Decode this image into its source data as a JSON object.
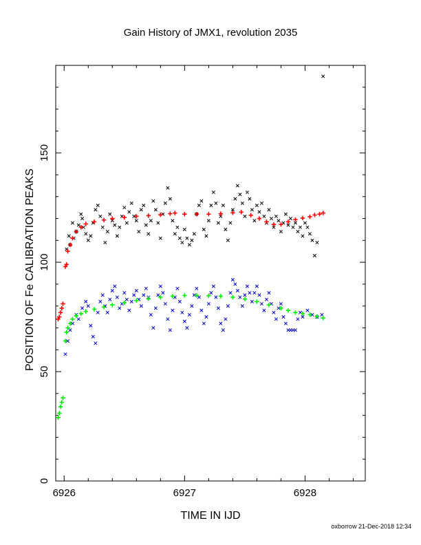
{
  "chart_data": {
    "type": "scatter",
    "title": "Gain History of JMX1, revolution 2035",
    "xlabel": "TIME IN IJD",
    "ylabel": "POSITION OF Fe CALIBRATION PEAKS",
    "xlim": [
      6925.93,
      6928.5
    ],
    "ylim": [
      0,
      190
    ],
    "x_ticks": [
      6926,
      6927,
      6928
    ],
    "y_ticks": [
      0,
      50,
      100,
      150
    ],
    "grid": false,
    "series": [
      {
        "marker": "x",
        "color": "#000000",
        "points": [
          [
            6926.02,
            106
          ],
          [
            6926.04,
            112
          ],
          [
            6926.05,
            108
          ],
          [
            6926.07,
            118
          ],
          [
            6926.08,
            111
          ],
          [
            6926.1,
            114
          ],
          [
            6926.12,
            117
          ],
          [
            6926.14,
            122
          ],
          [
            6926.15,
            120
          ],
          [
            6926.16,
            116
          ],
          [
            6926.18,
            113
          ],
          [
            6926.2,
            110
          ],
          [
            6926.22,
            112
          ],
          [
            6926.24,
            118
          ],
          [
            6926.26,
            124
          ],
          [
            6926.28,
            126
          ],
          [
            6926.3,
            121
          ],
          [
            6926.32,
            116
          ],
          [
            6926.34,
            109
          ],
          [
            6926.36,
            114
          ],
          [
            6926.38,
            122
          ],
          [
            6926.4,
            119
          ],
          [
            6926.42,
            117
          ],
          [
            6926.44,
            112
          ],
          [
            6926.46,
            116
          ],
          [
            6926.48,
            121
          ],
          [
            6926.5,
            125
          ],
          [
            6926.52,
            118
          ],
          [
            6926.54,
            123
          ],
          [
            6926.56,
            127
          ],
          [
            6926.58,
            121
          ],
          [
            6926.6,
            119
          ],
          [
            6926.62,
            114
          ],
          [
            6926.64,
            124
          ],
          [
            6926.66,
            126
          ],
          [
            6926.68,
            117
          ],
          [
            6926.7,
            113
          ],
          [
            6926.72,
            119
          ],
          [
            6926.74,
            128
          ],
          [
            6926.76,
            124
          ],
          [
            6926.78,
            118
          ],
          [
            6926.8,
            111
          ],
          [
            6926.82,
            122
          ],
          [
            6926.84,
            127
          ],
          [
            6926.86,
            134
          ],
          [
            6926.88,
            129
          ],
          [
            6926.9,
            119
          ],
          [
            6926.92,
            113
          ],
          [
            6926.94,
            116
          ],
          [
            6926.96,
            111
          ],
          [
            6926.98,
            109
          ],
          [
            6927.0,
            115
          ],
          [
            6927.02,
            111
          ],
          [
            6927.04,
            108
          ],
          [
            6927.06,
            110
          ],
          [
            6927.08,
            113
          ],
          [
            6927.1,
            122
          ],
          [
            6927.12,
            126
          ],
          [
            6927.14,
            128
          ],
          [
            6927.16,
            115
          ],
          [
            6927.18,
            112
          ],
          [
            6927.2,
            119
          ],
          [
            6927.22,
            126
          ],
          [
            6927.24,
            132
          ],
          [
            6927.26,
            127
          ],
          [
            6927.28,
            118
          ],
          [
            6927.3,
            121
          ],
          [
            6927.32,
            126
          ],
          [
            6927.34,
            115
          ],
          [
            6927.36,
            110
          ],
          [
            6927.38,
            118
          ],
          [
            6927.4,
            124
          ],
          [
            6927.42,
            129
          ],
          [
            6927.44,
            135
          ],
          [
            6927.46,
            131
          ],
          [
            6927.48,
            127
          ],
          [
            6927.5,
            121
          ],
          [
            6927.52,
            132
          ],
          [
            6927.54,
            129
          ],
          [
            6927.56,
            124
          ],
          [
            6927.58,
            119
          ],
          [
            6927.6,
            126
          ],
          [
            6927.62,
            123
          ],
          [
            6927.64,
            127
          ],
          [
            6927.66,
            121
          ],
          [
            6927.68,
            118
          ],
          [
            6927.7,
            124
          ],
          [
            6927.72,
            120
          ],
          [
            6927.74,
            116
          ],
          [
            6927.76,
            121
          ],
          [
            6927.78,
            119
          ],
          [
            6927.8,
            114
          ],
          [
            6927.82,
            118
          ],
          [
            6927.84,
            122
          ],
          [
            6927.86,
            117
          ],
          [
            6927.88,
            120
          ],
          [
            6927.9,
            116
          ],
          [
            6927.92,
            118
          ],
          [
            6927.94,
            114
          ],
          [
            6927.96,
            116
          ],
          [
            6927.98,
            112
          ],
          [
            6928.0,
            118
          ],
          [
            6928.02,
            116
          ],
          [
            6928.04,
            113
          ],
          [
            6928.06,
            110
          ],
          [
            6928.08,
            103
          ],
          [
            6928.1,
            109
          ],
          [
            6928.15,
            185
          ]
        ]
      },
      {
        "marker": "+",
        "color": "#ff0000",
        "points": [
          [
            6925.95,
            74
          ],
          [
            6925.96,
            75
          ],
          [
            6925.97,
            77
          ],
          [
            6925.98,
            79
          ],
          [
            6925.99,
            81
          ],
          [
            6926.01,
            98
          ],
          [
            6926.02,
            99
          ],
          [
            6926.03,
            105
          ],
          [
            6926.05,
            108
          ],
          [
            6926.07,
            111
          ],
          [
            6926.1,
            114
          ],
          [
            6926.14,
            116
          ],
          [
            6926.18,
            117.5
          ],
          [
            6926.25,
            118.5
          ],
          [
            6926.33,
            119.3
          ],
          [
            6926.4,
            120
          ],
          [
            6926.5,
            120.5
          ],
          [
            6926.6,
            121
          ],
          [
            6926.7,
            121.3
          ],
          [
            6926.8,
            121.7
          ],
          [
            6926.88,
            122.2
          ],
          [
            6926.92,
            122.5
          ],
          [
            6927.0,
            122
          ],
          [
            6927.1,
            122
          ],
          [
            6927.2,
            122
          ],
          [
            6927.3,
            122.2
          ],
          [
            6927.4,
            122.6
          ],
          [
            6927.47,
            122.9
          ],
          [
            6927.55,
            121.5
          ],
          [
            6927.62,
            120
          ],
          [
            6927.68,
            118.5
          ],
          [
            6927.74,
            117.3
          ],
          [
            6927.8,
            117.3
          ],
          [
            6927.86,
            118.5
          ],
          [
            6927.92,
            119.5
          ],
          [
            6927.98,
            120.2
          ],
          [
            6928.04,
            120.8
          ],
          [
            6928.08,
            121.6
          ],
          [
            6928.12,
            122
          ],
          [
            6928.15,
            122.5
          ]
        ]
      },
      {
        "marker": "x",
        "color": "#0000cc",
        "points": [
          [
            6926.01,
            58
          ],
          [
            6926.03,
            64
          ],
          [
            6926.05,
            69
          ],
          [
            6926.07,
            72
          ],
          [
            6926.1,
            76
          ],
          [
            6926.12,
            74
          ],
          [
            6926.15,
            79
          ],
          [
            6926.18,
            82
          ],
          [
            6926.2,
            80
          ],
          [
            6926.22,
            71
          ],
          [
            6926.24,
            66
          ],
          [
            6926.26,
            63
          ],
          [
            6926.28,
            77
          ],
          [
            6926.3,
            82
          ],
          [
            6926.32,
            85
          ],
          [
            6926.34,
            80
          ],
          [
            6926.36,
            77
          ],
          [
            6926.38,
            83
          ],
          [
            6926.4,
            87
          ],
          [
            6926.42,
            89
          ],
          [
            6926.44,
            84
          ],
          [
            6926.46,
            79
          ],
          [
            6926.48,
            81
          ],
          [
            6926.5,
            86
          ],
          [
            6926.52,
            83
          ],
          [
            6926.54,
            78
          ],
          [
            6926.56,
            82
          ],
          [
            6926.58,
            85
          ],
          [
            6926.6,
            87
          ],
          [
            6926.62,
            83
          ],
          [
            6926.64,
            80
          ],
          [
            6926.66,
            85
          ],
          [
            6926.68,
            88
          ],
          [
            6926.7,
            84
          ],
          [
            6926.72,
            76
          ],
          [
            6926.74,
            70
          ],
          [
            6926.76,
            79
          ],
          [
            6926.78,
            85
          ],
          [
            6926.8,
            89
          ],
          [
            6926.82,
            86
          ],
          [
            6926.84,
            81
          ],
          [
            6926.86,
            74
          ],
          [
            6926.88,
            69
          ],
          [
            6926.9,
            78
          ],
          [
            6926.92,
            84
          ],
          [
            6926.94,
            88
          ],
          [
            6926.96,
            82
          ],
          [
            6926.98,
            77
          ],
          [
            6927.0,
            73
          ],
          [
            6927.02,
            70
          ],
          [
            6927.04,
            76
          ],
          [
            6927.06,
            80
          ],
          [
            6927.08,
            85
          ],
          [
            6927.1,
            88
          ],
          [
            6927.12,
            84
          ],
          [
            6927.14,
            78
          ],
          [
            6927.16,
            72
          ],
          [
            6927.18,
            75
          ],
          [
            6927.2,
            81
          ],
          [
            6927.22,
            86
          ],
          [
            6927.24,
            89
          ],
          [
            6927.26,
            84
          ],
          [
            6927.28,
            79
          ],
          [
            6927.3,
            72
          ],
          [
            6927.32,
            69
          ],
          [
            6927.34,
            74
          ],
          [
            6927.36,
            80
          ],
          [
            6927.38,
            86
          ],
          [
            6927.4,
            92
          ],
          [
            6927.42,
            90
          ],
          [
            6927.44,
            87
          ],
          [
            6927.46,
            84
          ],
          [
            6927.48,
            80
          ],
          [
            6927.5,
            85
          ],
          [
            6927.52,
            89
          ],
          [
            6927.54,
            86
          ],
          [
            6927.56,
            82
          ],
          [
            6927.58,
            86
          ],
          [
            6927.6,
            89
          ],
          [
            6927.62,
            85
          ],
          [
            6927.64,
            81
          ],
          [
            6927.66,
            78
          ],
          [
            6927.68,
            83
          ],
          [
            6927.7,
            86
          ],
          [
            6927.72,
            81
          ],
          [
            6927.74,
            77
          ],
          [
            6927.76,
            74
          ],
          [
            6927.78,
            79
          ],
          [
            6927.8,
            81
          ],
          [
            6927.82,
            75
          ],
          [
            6927.84,
            72
          ],
          [
            6927.86,
            69
          ],
          [
            6927.88,
            69
          ],
          [
            6927.9,
            69
          ],
          [
            6927.92,
            69
          ],
          [
            6927.94,
            74
          ],
          [
            6927.96,
            77
          ],
          [
            6927.98,
            75
          ],
          [
            6928.02,
            78
          ],
          [
            6928.06,
            76
          ],
          [
            6928.1,
            75
          ],
          [
            6928.14,
            76
          ]
        ]
      },
      {
        "marker": "+",
        "color": "#00ee00",
        "points": [
          [
            6925.95,
            29
          ],
          [
            6925.96,
            31
          ],
          [
            6925.97,
            34
          ],
          [
            6925.98,
            36
          ],
          [
            6925.99,
            38
          ],
          [
            6926.01,
            64
          ],
          [
            6926.02,
            68
          ],
          [
            6926.03,
            70
          ],
          [
            6926.05,
            72
          ],
          [
            6926.07,
            74
          ],
          [
            6926.1,
            75.5
          ],
          [
            6926.14,
            76.5
          ],
          [
            6926.18,
            77.5
          ],
          [
            6926.25,
            78.5
          ],
          [
            6926.33,
            79.5
          ],
          [
            6926.4,
            80.5
          ],
          [
            6926.5,
            81.5
          ],
          [
            6926.6,
            82.5
          ],
          [
            6926.7,
            83.3
          ],
          [
            6926.8,
            84
          ],
          [
            6926.9,
            84.5
          ],
          [
            6927.0,
            84.8
          ],
          [
            6927.1,
            84.8
          ],
          [
            6927.2,
            84.7
          ],
          [
            6927.3,
            84.5
          ],
          [
            6927.4,
            84
          ],
          [
            6927.5,
            83.2
          ],
          [
            6927.6,
            82
          ],
          [
            6927.7,
            80.5
          ],
          [
            6927.8,
            79
          ],
          [
            6927.86,
            78
          ],
          [
            6927.92,
            77
          ],
          [
            6927.98,
            76.5
          ],
          [
            6928.04,
            76
          ],
          [
            6928.1,
            75.2
          ],
          [
            6928.15,
            74.5
          ]
        ]
      }
    ]
  },
  "footer": "oxborrow 21-Dec-2018 12:34"
}
